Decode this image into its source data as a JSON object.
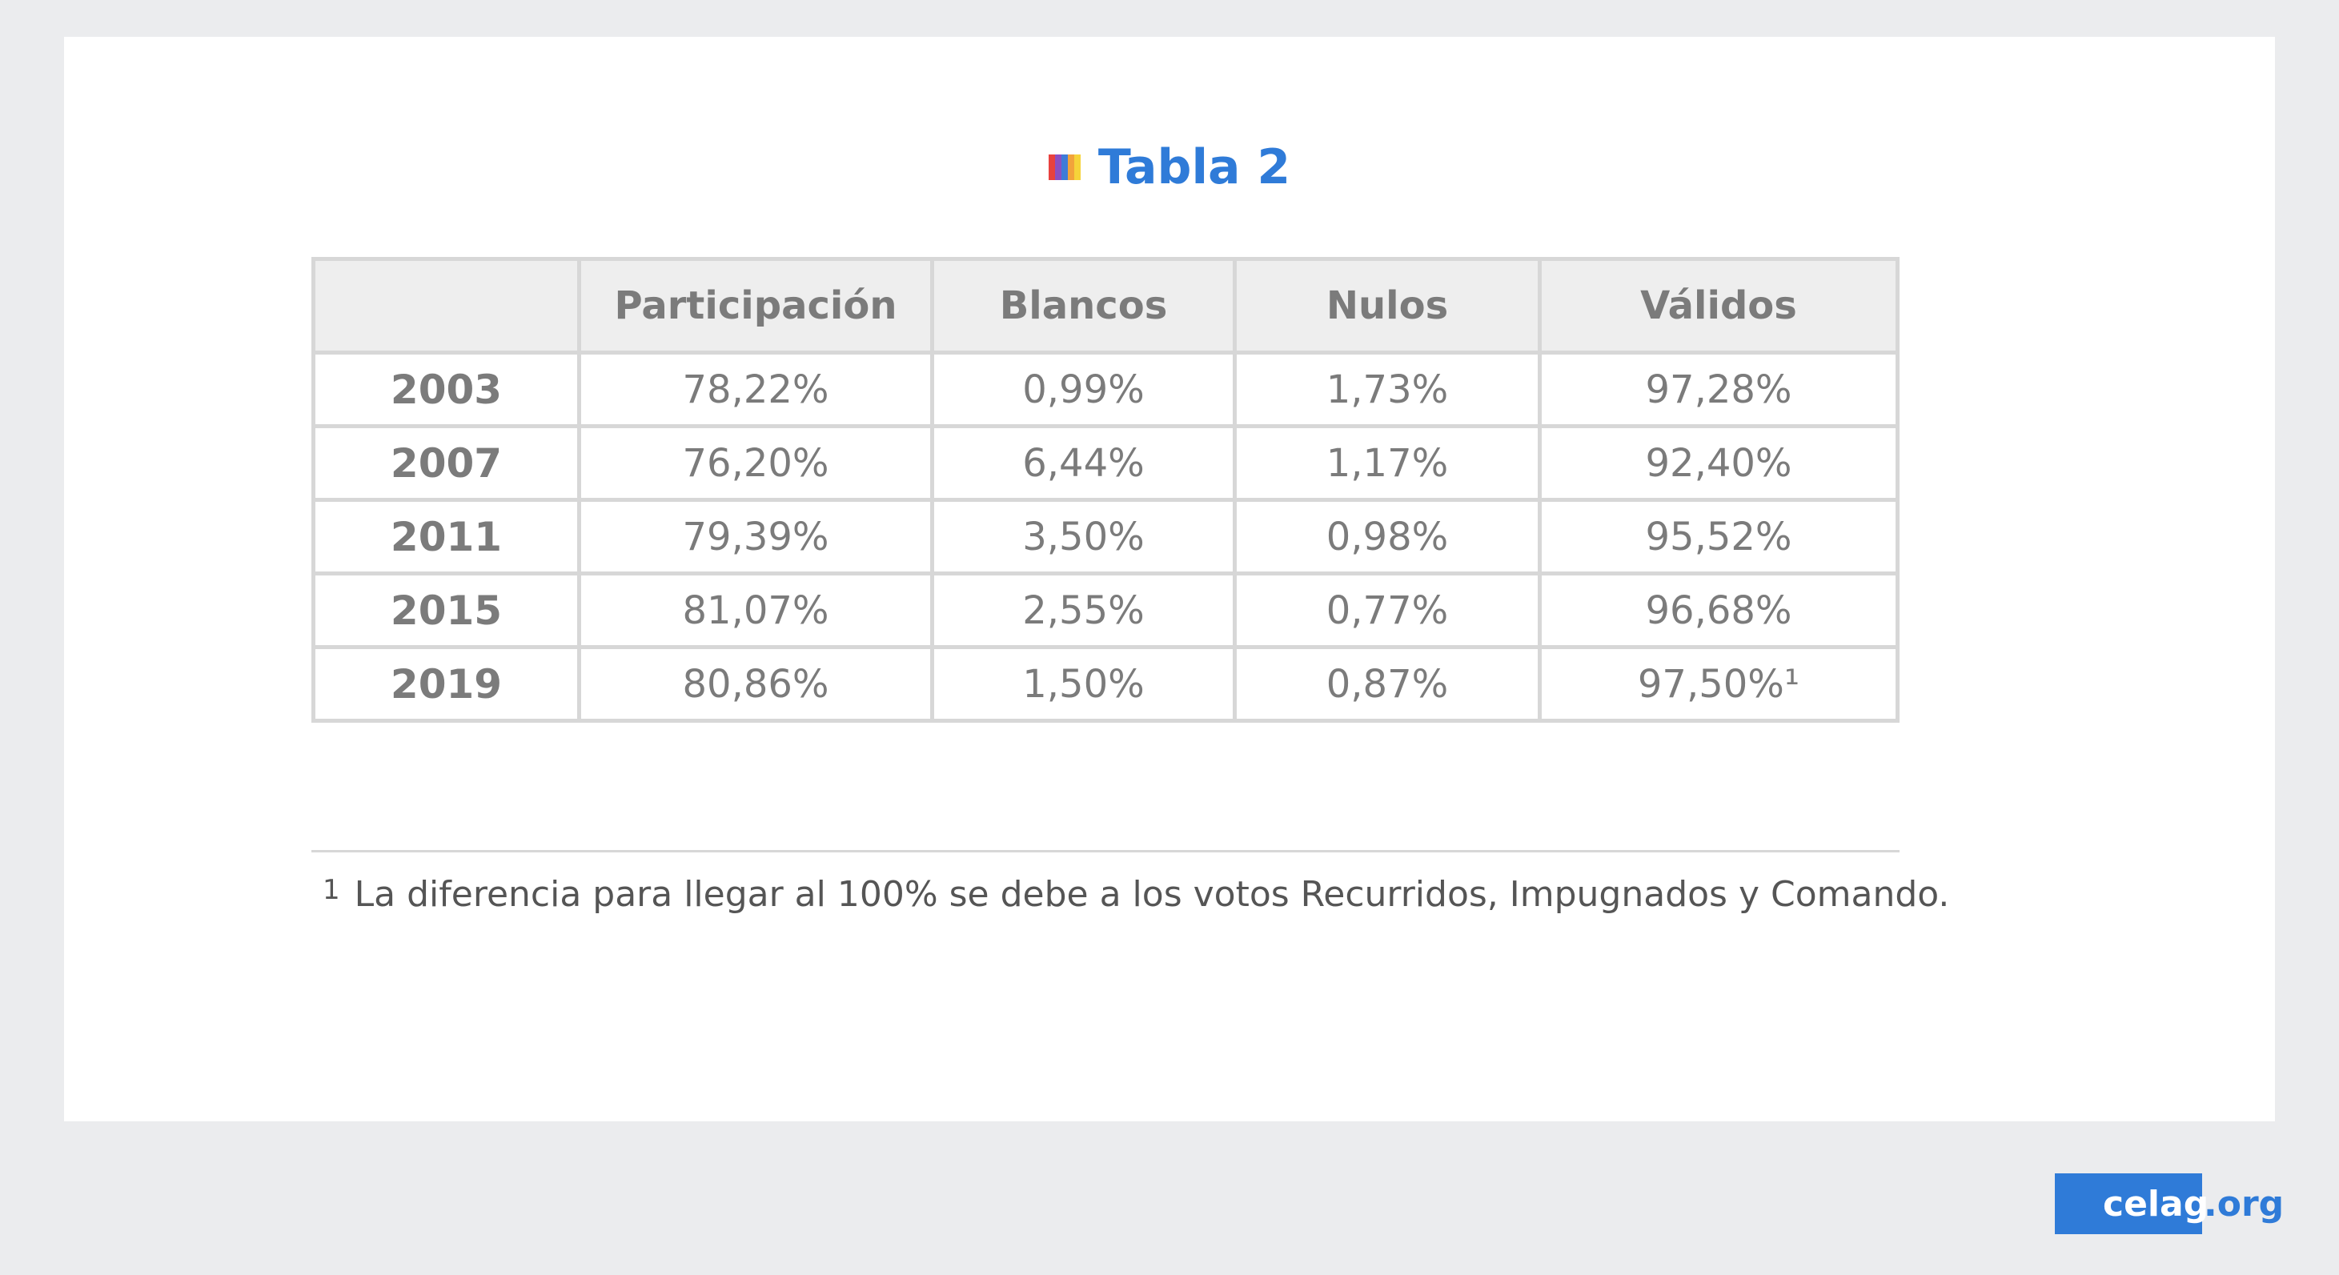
{
  "title": "Tabla 2",
  "stripe_colors": [
    "#e8423f",
    "#8b4fc2",
    "#3f7bd8",
    "#f2a33b",
    "#f6d33a"
  ],
  "table": {
    "headers": [
      "",
      "Participación",
      "Blancos",
      "Nulos",
      "Válidos"
    ],
    "rows": [
      [
        "2003",
        "78,22%",
        "0,99%",
        "1,73%",
        "97,28%"
      ],
      [
        "2007",
        "76,20%",
        "6,44%",
        "1,17%",
        "92,40%"
      ],
      [
        "2011",
        "79,39%",
        "3,50%",
        "0,98%",
        "95,52%"
      ],
      [
        "2015",
        "81,07%",
        "2,55%",
        "0,77%",
        "96,68%"
      ],
      [
        "2019",
        "80,86%",
        "1,50%",
        "0,87%",
        "97,50%¹"
      ]
    ]
  },
  "chart_data": {
    "type": "table",
    "title": "Tabla 2",
    "columns": [
      "Participación",
      "Blancos",
      "Nulos",
      "Válidos"
    ],
    "categories": [
      "2003",
      "2007",
      "2011",
      "2015",
      "2019"
    ],
    "series": [
      {
        "name": "Participación",
        "values": [
          78.22,
          76.2,
          79.39,
          81.07,
          80.86
        ]
      },
      {
        "name": "Blancos",
        "values": [
          0.99,
          6.44,
          3.5,
          2.55,
          1.5
        ]
      },
      {
        "name": "Nulos",
        "values": [
          1.73,
          1.17,
          0.98,
          0.77,
          0.87
        ]
      },
      {
        "name": "Válidos",
        "values": [
          97.28,
          92.4,
          95.52,
          96.68,
          97.5
        ]
      }
    ],
    "unit": "%",
    "annotations": [
      "La diferencia para llegar al 100% se debe a los votos Recurridos, Impugnados y Comando."
    ]
  },
  "footnote": {
    "mark": "1",
    "text": "La diferencia para llegar al 100% se debe a los votos Recurridos, Impugnados y Comando."
  },
  "brand": {
    "name": "celag",
    "suffix": ".org",
    "color": "#2f7bd8"
  }
}
